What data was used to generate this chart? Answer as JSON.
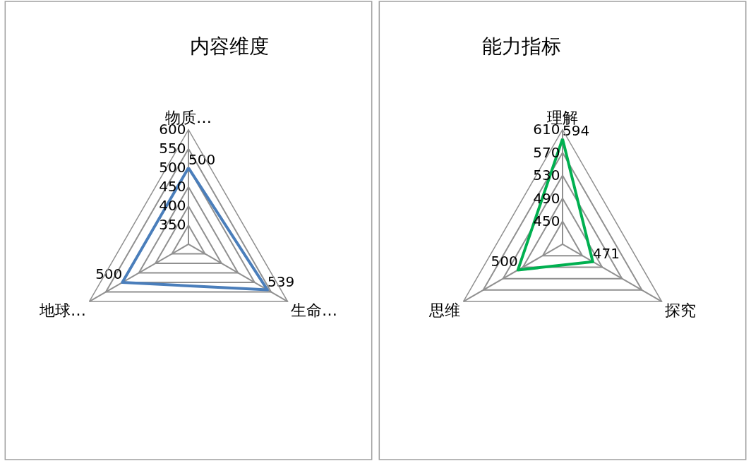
{
  "chart_data": [
    {
      "type": "radar",
      "title": "内容维度",
      "categories": [
        "物质…",
        "生命…",
        "地球…"
      ],
      "series": [
        {
          "color": "#4a7ebb",
          "values": [
            500,
            539,
            500
          ]
        }
      ],
      "ylim": [
        300,
        600
      ],
      "yticks": [
        350,
        400,
        450,
        500,
        550,
        600
      ],
      "data_labels": true,
      "grid": true,
      "marker": "none"
    },
    {
      "type": "radar",
      "title": "能力指标",
      "categories": [
        "理解",
        "探究",
        "思维"
      ],
      "series": [
        {
          "color": "#00b050",
          "values": [
            594,
            471,
            500
          ]
        }
      ],
      "ylim": [
        410,
        610
      ],
      "yticks": [
        450,
        490,
        530,
        570,
        610
      ],
      "data_labels": true,
      "grid": true,
      "marker": "none"
    }
  ]
}
